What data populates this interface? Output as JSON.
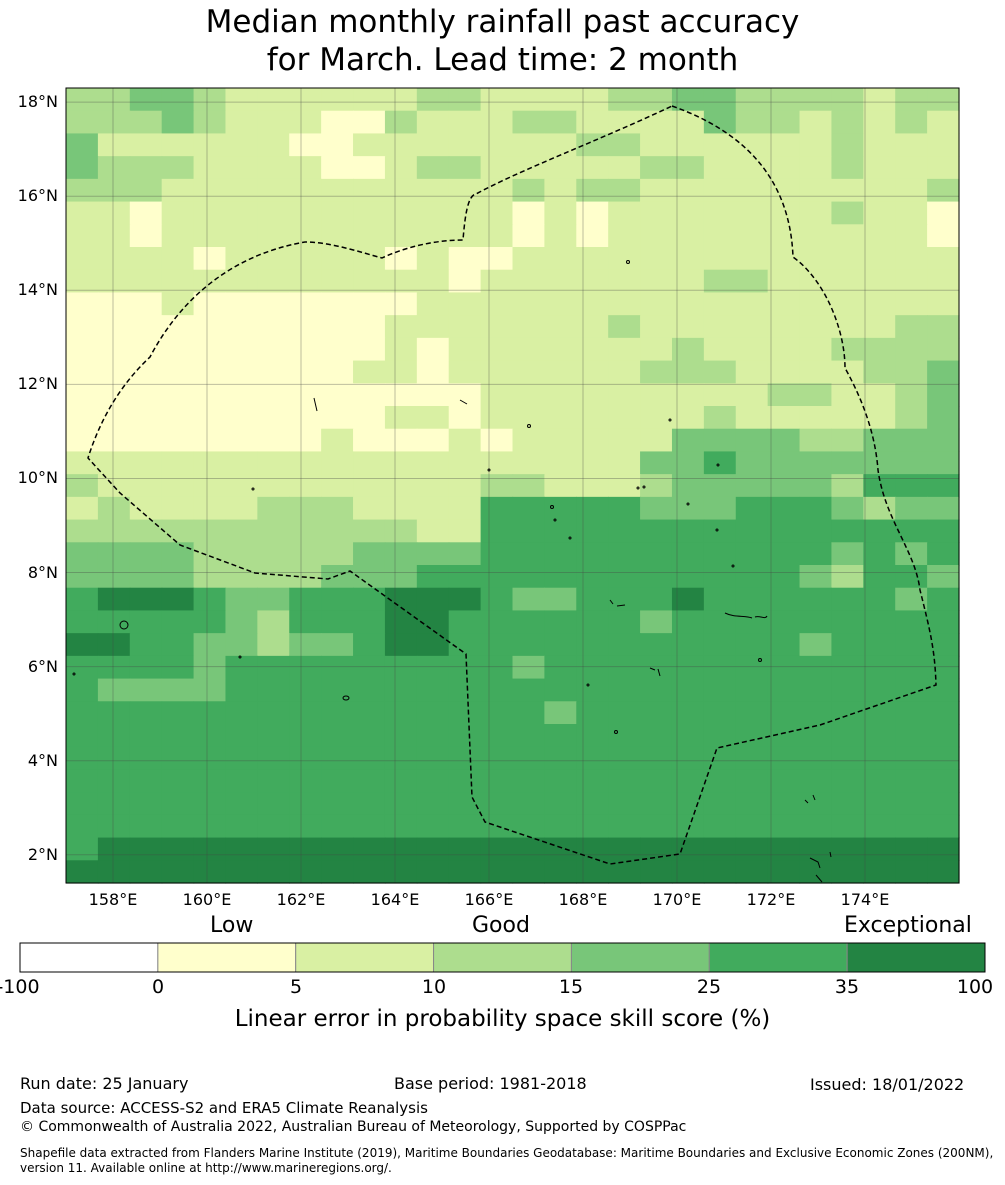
{
  "title": {
    "line1": "Median monthly rainfall past accuracy",
    "line2": "for March. Lead time: 2 month"
  },
  "map": {
    "lon_range": [
      157,
      176
    ],
    "lat_range": [
      1.4,
      18.3
    ],
    "lat_labels": [
      "18°N",
      "16°N",
      "14°N",
      "12°N",
      "10°N",
      "8°N",
      "6°N",
      "4°N",
      "2°N"
    ],
    "lon_labels": [
      "158°E",
      "160°E",
      "162°E",
      "164°E",
      "166°E",
      "168°E",
      "170°E",
      "172°E",
      "174°E"
    ],
    "boundary": "dashed EEZ outline",
    "grid": true,
    "skill_grid_rows": [
      "2233211111122111122332222122",
      "2223211100211122111132212121",
      "3111111001111111221111112111",
      "3222111100122111112211112111",
      "2221111111111121221111111112",
      "1101111111111101011111112110",
      "1101111111111101011111111110",
      "1111011111010011111111111111",
      "1111111111110111111122111111",
      "0001000000011111111111111111",
      "0000000000111111121111111122",
      "0000000000101111111211112222",
      "0000000001101111112221111223",
      "0000000000000111111111221123",
      "0000000000110111111121111123",
      "0000000010001011111333322333",
      "1111111111111111113343333333",
      "2111111111111221112333332444",
      "1211112221111444443334443233",
      "2222222222211444444444444444",
      "3333222223333444444444443434",
      "3333222233344444444444432443",
      "4555433444555433444544444434",
      "4444432444554444443444444444",
      "5544332334554444444444434444",
      "4444344444444434444444444444",
      "4333344444444444444444444444",
      "4444444444444443444444444444",
      "4444444444444444444444444444",
      "4444444444444444444444444444",
      "4444444444444444444444444444",
      "4444444444444444444444444444",
      "4444444444444444444444444444",
      "4555555555555555555555555555",
      "5555555555555555555555555555"
    ]
  },
  "colorbar": {
    "words": [
      "Low",
      "Good",
      "Exceptional"
    ],
    "ticks": [
      "-100",
      "0",
      "5",
      "10",
      "15",
      "25",
      "35",
      "100"
    ],
    "colors": [
      "#ffffff",
      "#ffffcc",
      "#d9f0a3",
      "#addd8e",
      "#78c679",
      "#41ab5d",
      "#238443"
    ],
    "label": "Linear error in probability space skill score (%)"
  },
  "footer": {
    "run_date": "Run date: 25 January",
    "base_period": "Base period: 1981-2018",
    "issued": "Issued: 18/01/2022",
    "data_source": "Data source: ACCESS-S2 and ERA5 Climate Reanalysis",
    "copyright": "© Commonwealth of Australia 2022, Australian Bureau of Meteorology, Supported by COSPPac",
    "shapefile": "Shapefile data extracted from Flanders Marine Institute (2019), Maritime Boundaries Geodatabase: Maritime Boundaries and Exclusive Economic Zones (200NM), version 11. Available online at http://www.marineregions.org/."
  }
}
